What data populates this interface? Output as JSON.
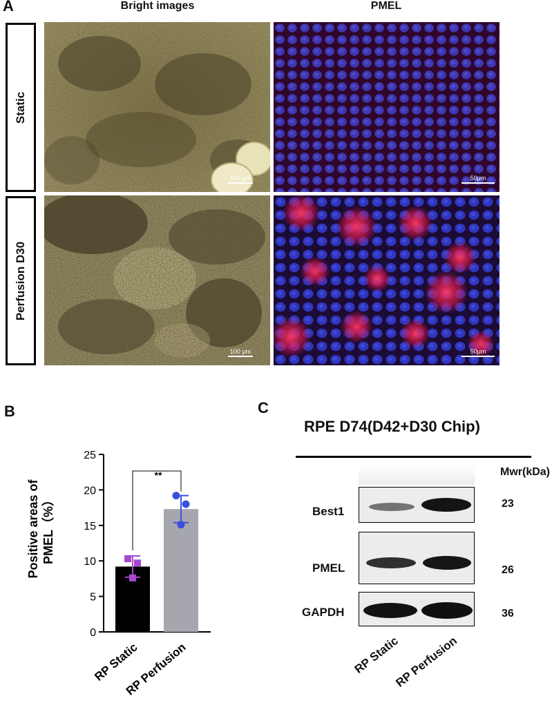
{
  "panel_a": {
    "letter": "A",
    "col_headers": [
      "Bright images",
      "PMEL"
    ],
    "row_labels": [
      "Static",
      "Perfusion D30"
    ],
    "scale_bright": "100 μm",
    "scale_pmel": "50μm"
  },
  "panel_b": {
    "letter": "B",
    "significance": "**",
    "chart_data": {
      "type": "bar",
      "categories": [
        "RP Static",
        "RP Perfusion"
      ],
      "values": [
        9.2,
        17.3
      ],
      "error": [
        1.5,
        1.9
      ],
      "points": [
        [
          10.3,
          9.7,
          7.6
        ],
        [
          19.2,
          18.0,
          15.1
        ]
      ],
      "bar_colors": [
        "#000000",
        "#a6a6ae"
      ],
      "point_colors": [
        "#a64ad0",
        "#3b4fe0"
      ],
      "ylabel_line1": "Positive areas of",
      "ylabel_line2": "PMEL（%）",
      "ylim": [
        0,
        25
      ],
      "yticks": [
        0,
        5,
        10,
        15,
        20,
        25
      ]
    }
  },
  "panel_c": {
    "letter": "C",
    "title": "RPE D74(D42+D30 Chip)",
    "mw_header": "Mwr(kDa)",
    "rows": [
      {
        "label": "Best1",
        "mw": "23"
      },
      {
        "label": "PMEL",
        "mw": "26"
      },
      {
        "label": "GAPDH",
        "mw": "36"
      }
    ],
    "lanes": [
      "RP Static",
      "RP Perfusion"
    ]
  }
}
